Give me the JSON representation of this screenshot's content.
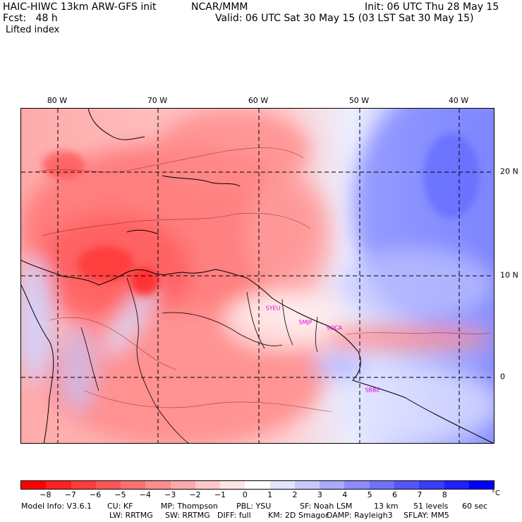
{
  "header": {
    "model_line": "HAIC-HIWC 13km ARW-GFS init",
    "org": "NCAR/MMM",
    "init": "Init: 06 UTC Thu 28 May 15",
    "fcst": "Fcst:   48 h",
    "valid": "Valid: 06 UTC Sat 30 May 15 (03 LST Sat 30 May 15)",
    "field": "Lifted index"
  },
  "map": {
    "lon_labels": [
      "80 W",
      "70 W",
      "60 W",
      "50 W",
      "40 W"
    ],
    "lat_labels": [
      "20 N",
      "10 N",
      "0"
    ],
    "stations": [
      "SYEU",
      "SMJP",
      "SOCA",
      "SBBE"
    ]
  },
  "colorbar": {
    "colors": [
      "#ff0000",
      "#ff2020",
      "#ff3b3b",
      "#ff5555",
      "#ff7070",
      "#ff8c8c",
      "#ffaaaa",
      "#ffc8c8",
      "#ffe4e4",
      "#ffffff",
      "#e4e4ff",
      "#c8c8ff",
      "#aaaaff",
      "#8c8cff",
      "#7070ff",
      "#5555ff",
      "#3b3bff",
      "#2020ff",
      "#0000ff"
    ],
    "ticks": [
      "−8",
      "−7",
      "−6",
      "−5",
      "−4",
      "−3",
      "−2",
      "−1",
      "0",
      "1",
      "2",
      "3",
      "4",
      "5",
      "6",
      "7",
      "8"
    ],
    "unit": "°C"
  },
  "footer": {
    "line1": [
      "Model Info: V3.6.1",
      "CU: KF",
      "MP: Thompson",
      "PBL: YSU",
      "SF: Noah LSM",
      "13 km",
      "51 levels",
      "60 sec"
    ],
    "line2": [
      "LW: RRTMG",
      "SW: RRTMG",
      "DIFF: full",
      "KM: 2D Smagor",
      "DAMP: Rayleigh3",
      "SFLAY: MM5"
    ]
  }
}
